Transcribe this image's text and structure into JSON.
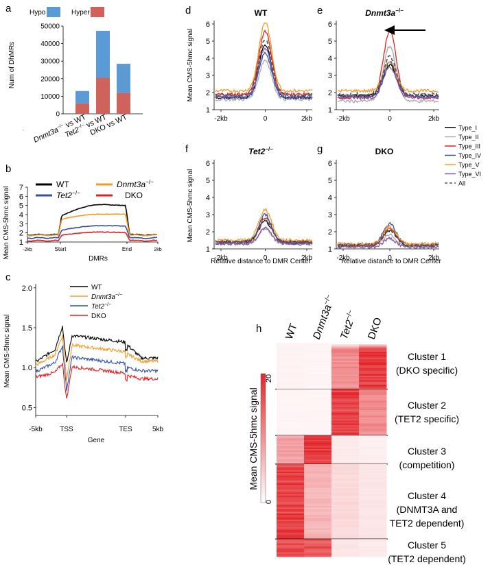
{
  "colors": {
    "hypo": "#5b9bd5",
    "hyper": "#d0625c",
    "wt": "#000000",
    "dnmt": "#f39a24",
    "tet2": "#2f4fa0",
    "dko": "#e02020",
    "type1": "#000000",
    "type2": "#a9a9a9",
    "type3": "#e02020",
    "type4": "#2f4fa0",
    "type5": "#f39a24",
    "type6": "#7e57a3",
    "all": "#555555",
    "heat_max": "#e3262b",
    "heat_min": "#ffffff"
  },
  "panels": {
    "a": "a",
    "b": "b",
    "c": "c",
    "d": "d",
    "e": "e",
    "f": "f",
    "g": "g",
    "h": "h"
  },
  "panel_a": {
    "chart_data": {
      "type": "bar",
      "stacked": true,
      "categories": [
        "Dnmt3a−/− vs WT",
        "Tet2−/− vs WT",
        "DKO vs WT"
      ],
      "category_parts": [
        {
          "gene": "Dnmt3a",
          "sup": "−/−",
          "rest": " vs WT"
        },
        {
          "gene": "Tet2",
          "sup": "−/−",
          "rest": " vs WT"
        },
        {
          "gene": "",
          "sup": "",
          "rest": "DKO vs WT"
        }
      ],
      "series": [
        {
          "name": "Hyper",
          "values": [
            6000,
            20500,
            12000
          ]
        },
        {
          "name": "Hypo",
          "values": [
            7000,
            26800,
            16500
          ]
        }
      ],
      "ylabel": "Num of DhMRs",
      "ylim": [
        0,
        50000
      ],
      "yticks": [
        "0",
        "10000",
        "20000",
        "30000",
        "40000",
        "50000"
      ],
      "legend": [
        "Hypo",
        "Hyper"
      ]
    }
  },
  "panel_b": {
    "chart_data": {
      "type": "line",
      "ylabel": "Mean CMS-5hmc signal",
      "xlabel": "DMRs",
      "xticks": [
        "-2kb",
        "Start",
        "End",
        "2kb"
      ],
      "yticks": [
        "1",
        "2",
        "3",
        "4",
        "5",
        "6",
        "7"
      ],
      "ylim": [
        1,
        7
      ],
      "legend": [
        {
          "name": "WT",
          "gene": "",
          "sup": ""
        },
        {
          "name": "Dnmt3a−/−",
          "gene": "Dnmt3a",
          "sup": "−/−"
        },
        {
          "name": "Tet2−/−",
          "gene": "Tet2",
          "sup": "−/−"
        },
        {
          "name": "DKO",
          "gene": "",
          "sup": ""
        }
      ],
      "series": [
        {
          "name": "WT",
          "flank": 1.8,
          "start": 3.9,
          "peak": 5.1,
          "end": 5.0
        },
        {
          "name": "Dnmt3a−/−",
          "flank": 1.75,
          "start": 3.5,
          "peak": 4.05,
          "end": 4.05
        },
        {
          "name": "Tet2−/−",
          "flank": 1.45,
          "start": 2.3,
          "peak": 2.8,
          "end": 2.75
        },
        {
          "name": "DKO",
          "flank": 1.15,
          "start": 1.75,
          "peak": 2.1,
          "end": 2.05
        }
      ]
    }
  },
  "panel_c": {
    "chart_data": {
      "type": "line",
      "ylabel": "Mean CMS-5hmc signal",
      "xlabel": "Gene",
      "xticks": [
        "-5kb",
        "TSS",
        "TES",
        "5kb"
      ],
      "yticks": [
        "0.5",
        "1.0",
        "1.5",
        "2.0"
      ],
      "ylim": [
        0.5,
        2.0
      ],
      "legend": [
        {
          "name": "WT",
          "gene": "",
          "sup": ""
        },
        {
          "name": "Dnmt3a−/−",
          "gene": "Dnmt3a",
          "sup": "−/−"
        },
        {
          "name": "Tet2−/−",
          "gene": "Tet2",
          "sup": "−/−"
        },
        {
          "name": "DKO",
          "gene": "",
          "sup": ""
        }
      ],
      "series": [
        {
          "name": "WT",
          "base": 1.07,
          "tss_peak": 1.52,
          "tss_dip": 1.05,
          "body": 1.32,
          "tes": 1.28,
          "tail": 1.12
        },
        {
          "name": "Dnmt3a−/−",
          "base": 1.03,
          "tss_peak": 1.4,
          "tss_dip": 0.85,
          "body": 1.2,
          "tes": 1.17,
          "tail": 1.08
        },
        {
          "name": "Tet2−/−",
          "base": 0.95,
          "tss_peak": 1.27,
          "tss_dip": 0.72,
          "body": 1.05,
          "tes": 1.0,
          "tail": 0.96
        },
        {
          "name": "DKO",
          "base": 0.88,
          "tss_peak": 1.05,
          "tss_dip": 0.6,
          "body": 0.93,
          "tes": 0.9,
          "tail": 0.86
        }
      ]
    }
  },
  "panel_d": {
    "chart_data": {
      "type": "line",
      "title": "WT",
      "ylabel": "Mean CMS-5hmc signal",
      "xticks": [
        "-2kb",
        "0",
        "2kb"
      ],
      "yticks": [
        "1",
        "2",
        "3",
        "4",
        "5",
        "6"
      ],
      "ylim": [
        1,
        6
      ],
      "series": [
        {
          "name": "Type_I",
          "base": 1.7,
          "peak": 4.8
        },
        {
          "name": "Type_II",
          "base": 1.6,
          "peak": 3.9
        },
        {
          "name": "Type_III",
          "base": 1.9,
          "peak": 5.6
        },
        {
          "name": "Type_IV",
          "base": 1.7,
          "peak": 4.3
        },
        {
          "name": "Type_V",
          "base": 2.1,
          "peak": 6.1
        },
        {
          "name": "Type_VI",
          "base": 1.8,
          "peak": 4.6
        },
        {
          "name": "All",
          "base": 1.85,
          "peak": 5.1
        }
      ]
    }
  },
  "panel_e": {
    "chart_data": {
      "type": "line",
      "title": "Dnmt3a−/−",
      "title_gene": "Dnmt3a",
      "title_sup": "−/−",
      "xticks": [
        "-2kb",
        "0",
        "2kb"
      ],
      "yticks": [
        "1",
        "2",
        "3",
        "4",
        "5",
        "6"
      ],
      "ylim": [
        1,
        6
      ],
      "annotation": "arrow pointing to Type_III peak",
      "series": [
        {
          "name": "Type_I",
          "base": 1.8,
          "peak": 3.6
        },
        {
          "name": "Type_II",
          "base": 1.5,
          "peak": 4.7
        },
        {
          "name": "Type_III",
          "base": 1.7,
          "peak": 5.6
        },
        {
          "name": "Type_IV",
          "base": 1.8,
          "peak": 3.8
        },
        {
          "name": "Type_V",
          "base": 2.1,
          "peak": 3.8
        },
        {
          "name": "Type_VI",
          "base": 1.7,
          "peak": 3.5
        },
        {
          "name": "All",
          "base": 1.9,
          "peak": 4.1
        }
      ]
    }
  },
  "panel_f": {
    "chart_data": {
      "type": "line",
      "title": "Tet2−/−",
      "title_gene": "Tet2",
      "title_sup": "−/−",
      "ylabel": "Mean CMS-5hmc signal",
      "xlabel": "Relative distance to DMR Center",
      "xticks": [
        "-2kb",
        "0",
        "2kb"
      ],
      "yticks": [
        "1",
        "2",
        "3",
        "4",
        "5",
        "6"
      ],
      "ylim": [
        1,
        6
      ],
      "series": [
        {
          "name": "Type_I",
          "base": 1.4,
          "peak": 2.6
        },
        {
          "name": "Type_II",
          "base": 1.3,
          "peak": 2.2
        },
        {
          "name": "Type_III",
          "base": 1.4,
          "peak": 2.8
        },
        {
          "name": "Type_IV",
          "base": 1.35,
          "peak": 3.0
        },
        {
          "name": "Type_V",
          "base": 1.5,
          "peak": 3.3
        },
        {
          "name": "Type_VI",
          "base": 1.3,
          "peak": 2.2
        },
        {
          "name": "All",
          "base": 1.4,
          "peak": 2.7
        }
      ]
    }
  },
  "panel_g": {
    "chart_data": {
      "type": "line",
      "title": "DKO",
      "xlabel": "Relative distance to DMR Center",
      "xticks": [
        "-2kb",
        "0",
        "2kb"
      ],
      "yticks": [
        "1",
        "2",
        "3",
        "4",
        "5",
        "6"
      ],
      "ylim": [
        1,
        6
      ],
      "series": [
        {
          "name": "Type_I",
          "base": 1.2,
          "peak": 2.1
        },
        {
          "name": "Type_II",
          "base": 1.15,
          "peak": 1.8
        },
        {
          "name": "Type_III",
          "base": 1.2,
          "peak": 2.2
        },
        {
          "name": "Type_IV",
          "base": 1.25,
          "peak": 2.45
        },
        {
          "name": "Type_V",
          "base": 1.3,
          "peak": 2.3
        },
        {
          "name": "Type_VI",
          "base": 1.1,
          "peak": 1.6
        },
        {
          "name": "All",
          "base": 1.2,
          "peak": 2.1
        }
      ]
    }
  },
  "type_legend": [
    "Type_I",
    "Type_II",
    "Type_III",
    "Type_IV",
    "Type_V",
    "Type_VI",
    "All"
  ],
  "panel_h": {
    "chart_data": {
      "type": "heatmap",
      "columns": [
        {
          "name": "WT",
          "gene": "",
          "sup": ""
        },
        {
          "name": "Dnmt3a−/−",
          "gene": "Dnmt3a",
          "sup": "−/−"
        },
        {
          "name": "Tet2−/−",
          "gene": "Tet2",
          "sup": "−/−"
        },
        {
          "name": "DKO",
          "gene": "",
          "sup": ""
        }
      ],
      "colorbar_label": "Mean CMS-5hmc signal",
      "colorbar_ticks": [
        "20",
        "0"
      ],
      "clusters": [
        {
          "line1": "Cluster 1",
          "line2": "(DKO specific)",
          "line3": "",
          "rows": 68,
          "intensity": [
            0.06,
            0.05,
            0.55,
            0.95
          ]
        },
        {
          "line1": "Cluster 2",
          "line2": "(TET2 specific)",
          "line3": "",
          "rows": 68,
          "intensity": [
            0.05,
            0.05,
            0.9,
            0.55
          ]
        },
        {
          "line1": "Cluster 3",
          "line2": "(competition)",
          "line3": "",
          "rows": 42,
          "intensity": [
            0.45,
            0.95,
            0.1,
            0.08
          ]
        },
        {
          "line1": "Cluster 4",
          "line2": "(DNMT3A and",
          "line3": "TET2 dependent)",
          "rows": 110,
          "intensity": [
            0.9,
            0.35,
            0.18,
            0.12
          ]
        },
        {
          "line1": "Cluster 5",
          "line2": "(TET2 dependent)",
          "line3": "",
          "rows": 26,
          "intensity": [
            0.85,
            0.8,
            0.12,
            0.1
          ]
        }
      ]
    }
  }
}
